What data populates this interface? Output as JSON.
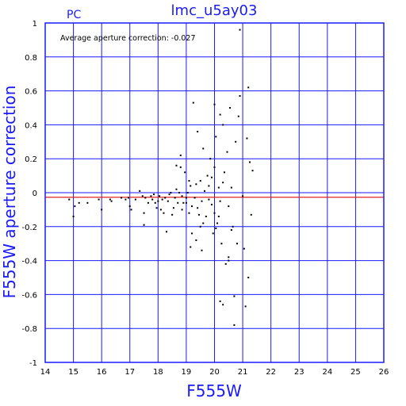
{
  "chart_data": {
    "type": "scatter",
    "title": "lmc_u5ay03",
    "corner_label": "PC",
    "xlabel": "F555W",
    "ylabel": "F555W aperture correction",
    "annotation": "Average aperture correction: -0.027",
    "average_line": -0.027,
    "xlim": [
      14,
      26
    ],
    "ylim": [
      -1,
      1
    ],
    "grid": true,
    "xticks": [
      14,
      15,
      16,
      17,
      18,
      19,
      20,
      21,
      22,
      23,
      24,
      25,
      26
    ],
    "yticks": [
      -1,
      -0.8,
      -0.6,
      -0.4,
      -0.2,
      0,
      0.2,
      0.4,
      0.6,
      0.8,
      1
    ],
    "ytick_labels": [
      "-1",
      "-0.8",
      "-0.6",
      "-0.4",
      "-0.2",
      "0",
      "0.2",
      "0.4",
      "0.6",
      "0.8",
      "1"
    ],
    "colors": {
      "axes": "#1a1aff",
      "grid": "#1a1aff",
      "points": "#000000",
      "average_line": "#e02020"
    },
    "points": [
      [
        14.85,
        -0.04
      ],
      [
        15.0,
        -0.14
      ],
      [
        15.05,
        -0.08
      ],
      [
        15.2,
        -0.06
      ],
      [
        15.5,
        -0.06
      ],
      [
        15.9,
        -0.04
      ],
      [
        16.0,
        -0.1
      ],
      [
        16.3,
        -0.04
      ],
      [
        16.35,
        -0.05
      ],
      [
        16.7,
        -0.03
      ],
      [
        16.85,
        -0.04
      ],
      [
        16.95,
        -0.03
      ],
      [
        17.0,
        -0.08
      ],
      [
        17.05,
        -0.1
      ],
      [
        17.2,
        -0.04
      ],
      [
        17.35,
        0.01
      ],
      [
        17.45,
        -0.02
      ],
      [
        17.5,
        -0.12
      ],
      [
        17.5,
        -0.19
      ],
      [
        17.55,
        -0.03
      ],
      [
        17.65,
        -0.06
      ],
      [
        17.75,
        -0.02
      ],
      [
        17.8,
        -0.04
      ],
      [
        17.85,
        -0.01
      ],
      [
        17.9,
        -0.06
      ],
      [
        17.95,
        -0.09
      ],
      [
        18.0,
        -0.05
      ],
      [
        18.05,
        -0.02
      ],
      [
        18.1,
        -0.1
      ],
      [
        18.15,
        -0.04
      ],
      [
        18.2,
        -0.12
      ],
      [
        18.25,
        -0.03
      ],
      [
        18.3,
        -0.23
      ],
      [
        18.35,
        -0.05
      ],
      [
        18.4,
        -0.01
      ],
      [
        18.45,
        0.0
      ],
      [
        18.5,
        -0.13
      ],
      [
        18.55,
        -0.09
      ],
      [
        18.6,
        -0.03
      ],
      [
        18.65,
        0.02
      ],
      [
        18.65,
        0.16
      ],
      [
        18.7,
        -0.06
      ],
      [
        18.75,
        0.0
      ],
      [
        18.8,
        0.15
      ],
      [
        18.8,
        0.22
      ],
      [
        18.85,
        -0.02
      ],
      [
        18.9,
        -0.06
      ],
      [
        18.95,
        0.12
      ],
      [
        19.0,
        -0.03
      ],
      [
        19.0,
        -0.06
      ],
      [
        19.05,
        0.0
      ],
      [
        19.1,
        0.07
      ],
      [
        19.1,
        -0.12
      ],
      [
        19.15,
        0.04
      ],
      [
        19.2,
        -0.08
      ],
      [
        19.2,
        -0.24
      ],
      [
        19.25,
        0.53
      ],
      [
        19.3,
        -0.03
      ],
      [
        19.35,
        0.05
      ],
      [
        19.4,
        0.36
      ],
      [
        19.4,
        -0.09
      ],
      [
        19.45,
        -0.13
      ],
      [
        19.5,
        0.07
      ],
      [
        19.5,
        -0.2
      ],
      [
        19.55,
        -0.05
      ],
      [
        19.6,
        0.26
      ],
      [
        19.65,
        0.01
      ],
      [
        19.7,
        -0.14
      ],
      [
        19.75,
        0.1
      ],
      [
        19.8,
        -0.04
      ],
      [
        19.85,
        0.2
      ],
      [
        19.9,
        -0.07
      ],
      [
        19.95,
        -0.24
      ],
      [
        20.0,
        0.52
      ],
      [
        20.0,
        0.15
      ],
      [
        20.0,
        -0.12
      ],
      [
        20.05,
        0.33
      ],
      [
        20.1,
        -0.18
      ],
      [
        20.15,
        0.03
      ],
      [
        20.2,
        0.46
      ],
      [
        20.2,
        -0.05
      ],
      [
        20.25,
        -0.3
      ],
      [
        20.3,
        0.4
      ],
      [
        20.35,
        0.12
      ],
      [
        20.4,
        -0.42
      ],
      [
        20.45,
        0.24
      ],
      [
        20.5,
        -0.08
      ],
      [
        20.5,
        -0.38
      ],
      [
        20.55,
        0.5
      ],
      [
        20.6,
        0.03
      ],
      [
        20.65,
        -0.2
      ],
      [
        20.7,
        -0.61
      ],
      [
        20.75,
        0.3
      ],
      [
        20.8,
        -0.3
      ],
      [
        20.85,
        0.45
      ],
      [
        20.9,
        0.96
      ],
      [
        20.9,
        0.57
      ],
      [
        21.0,
        -0.02
      ],
      [
        21.05,
        -0.33
      ],
      [
        21.1,
        -0.67
      ],
      [
        21.15,
        0.32
      ],
      [
        21.2,
        0.62
      ],
      [
        21.2,
        -0.5
      ],
      [
        21.25,
        0.18
      ],
      [
        21.3,
        -0.13
      ],
      [
        21.35,
        0.13
      ],
      [
        20.3,
        -0.66
      ],
      [
        20.2,
        -0.64
      ],
      [
        19.15,
        -0.32
      ],
      [
        19.35,
        -0.28
      ],
      [
        20.5,
        -0.4
      ],
      [
        20.3,
        0.06
      ],
      [
        20.7,
        -0.78
      ],
      [
        18.85,
        -0.1
      ],
      [
        19.6,
        -0.18
      ],
      [
        20.05,
        -0.21
      ],
      [
        19.8,
        0.04
      ],
      [
        20.15,
        -0.14
      ],
      [
        19.9,
        0.09
      ],
      [
        20.6,
        -0.22
      ],
      [
        19.55,
        -0.34
      ]
    ]
  }
}
